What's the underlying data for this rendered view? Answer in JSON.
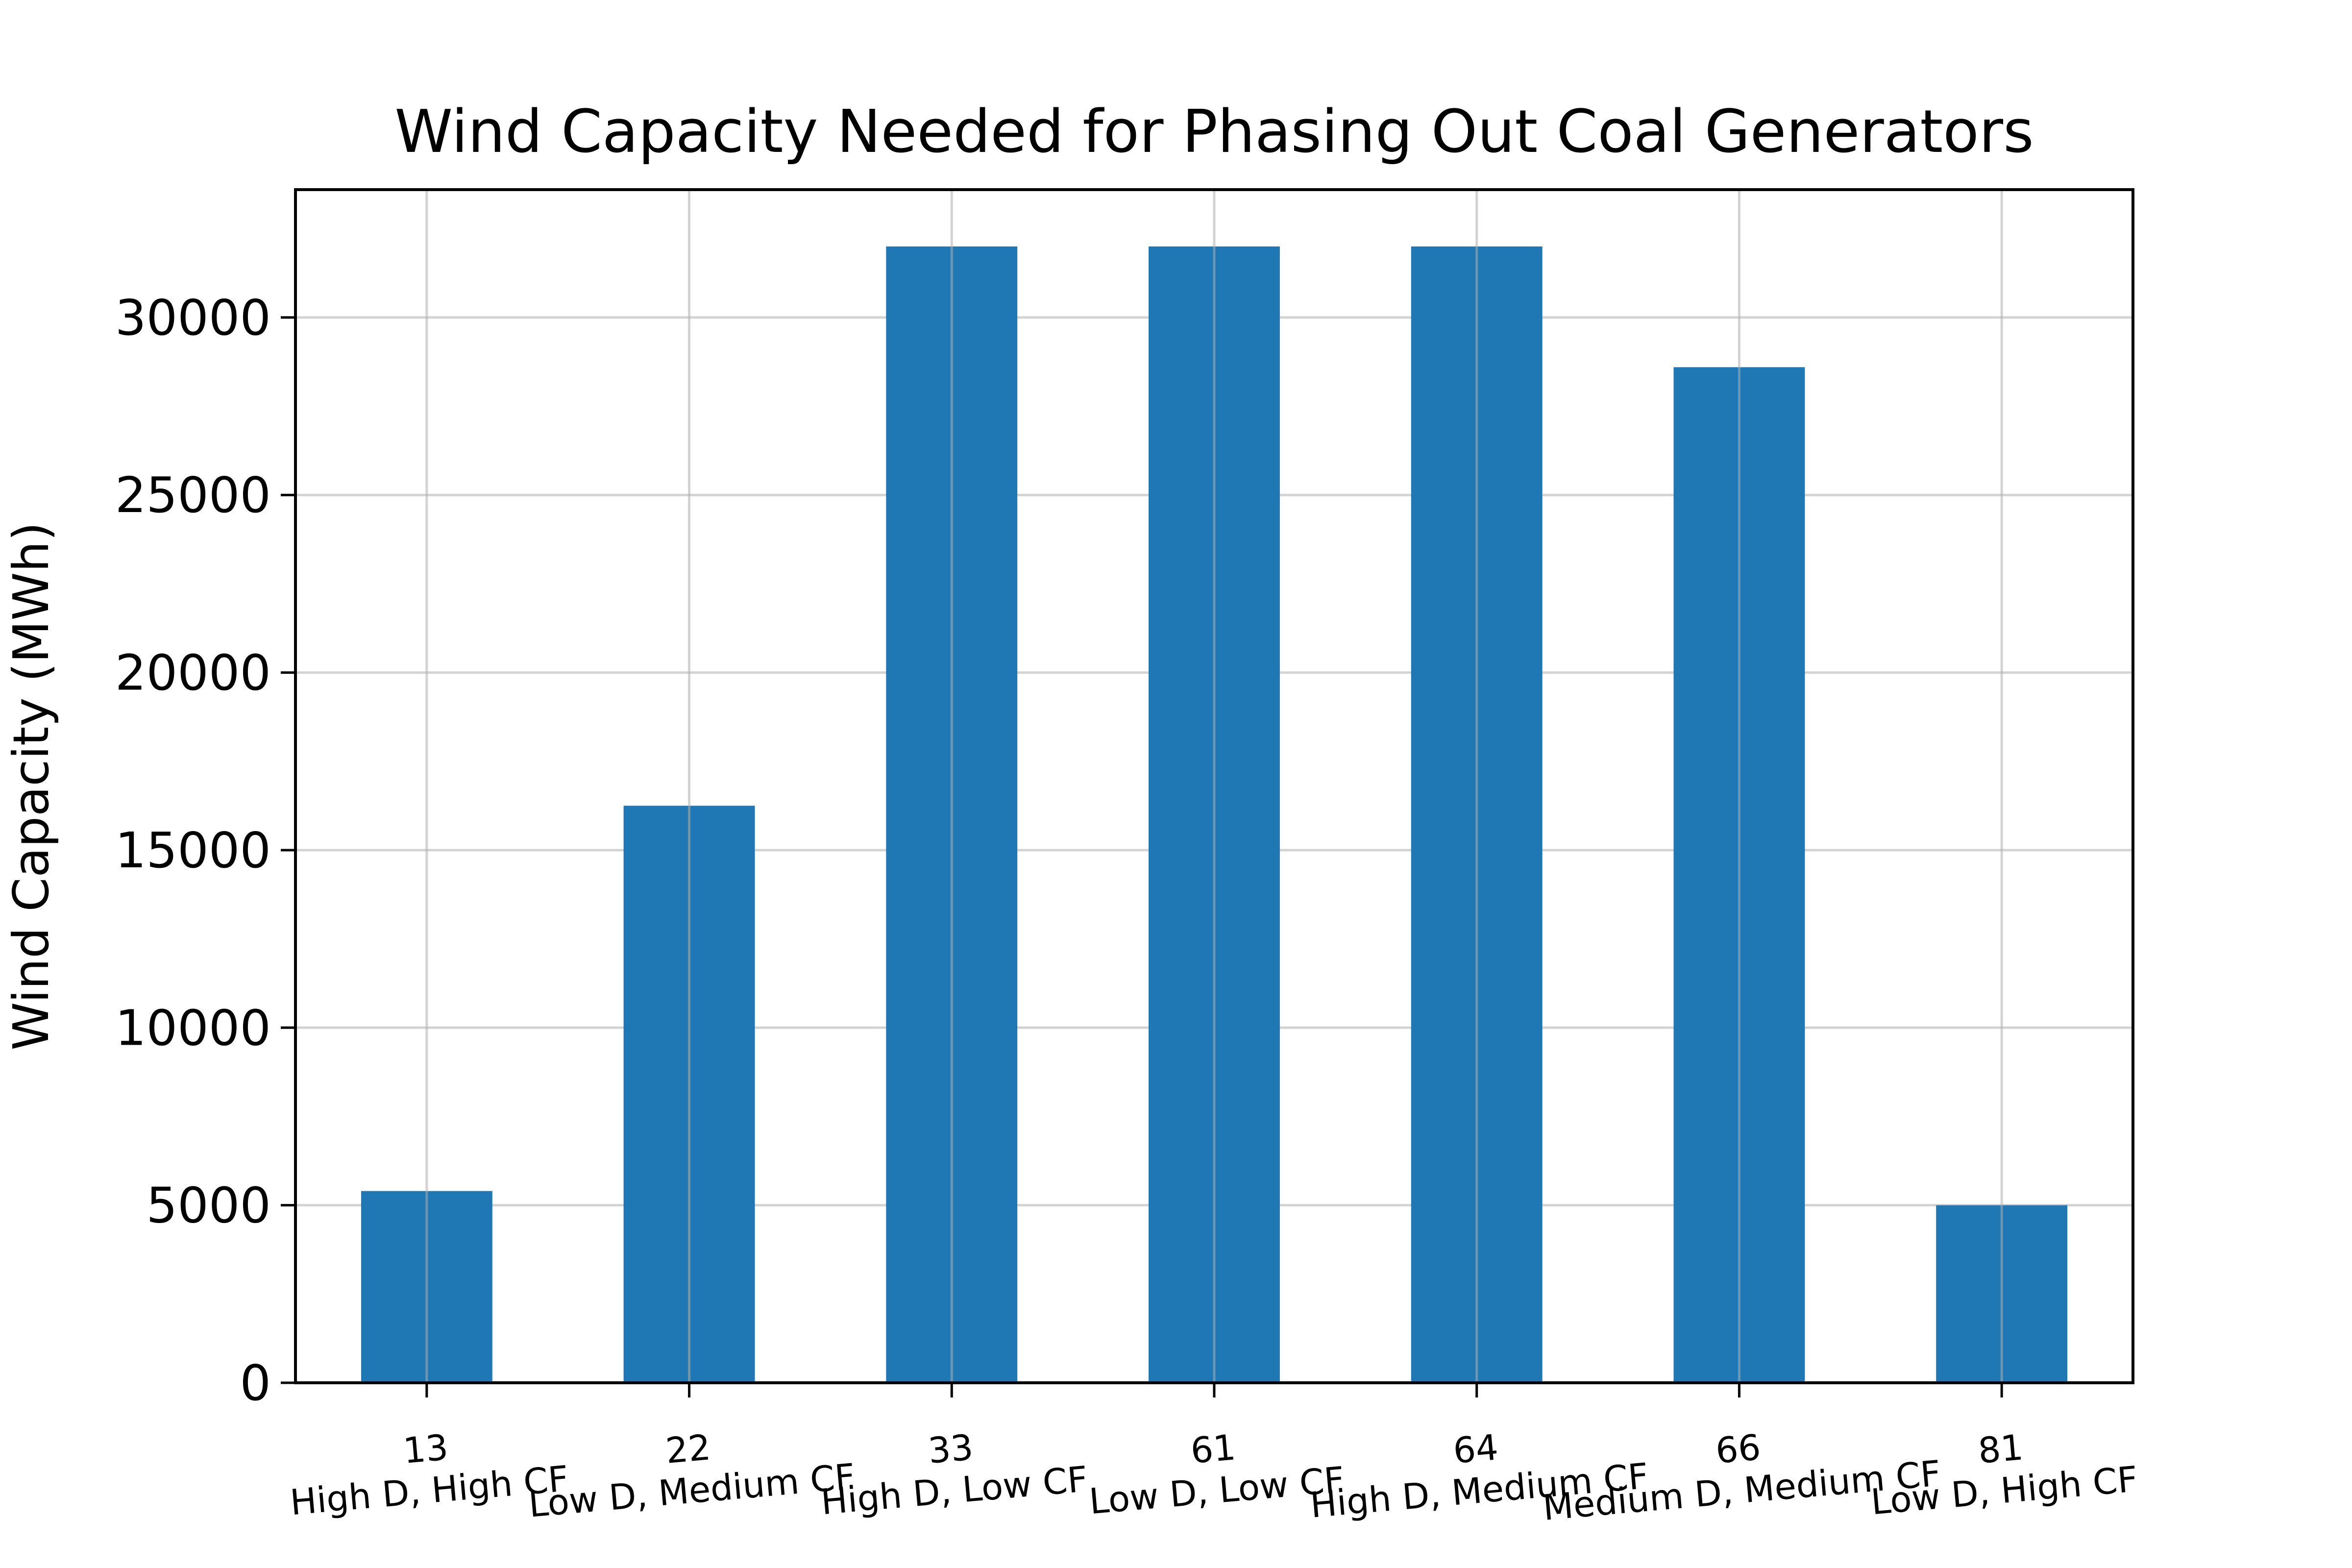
{
  "chart_data": {
    "type": "bar",
    "title": "Wind Capacity Needed for Phasing Out Coal Generators",
    "xlabel": "",
    "ylabel": "Wind Capacity (MWh)",
    "categories": [
      {
        "id": "13",
        "label": "High D, High CF"
      },
      {
        "id": "22",
        "label": "Low D, Medium CF"
      },
      {
        "id": "33",
        "label": "High D, Low CF"
      },
      {
        "id": "61",
        "label": "Low D, Low CF"
      },
      {
        "id": "64",
        "label": "High D, Medium CF"
      },
      {
        "id": "66",
        "label": "Medium D, Medium CF"
      },
      {
        "id": "81",
        "label": "Low D, High CF"
      }
    ],
    "values": [
      5400,
      16250,
      32000,
      32000,
      32000,
      28600,
      5000
    ],
    "ylim": [
      0,
      33600
    ],
    "yticks": [
      0,
      5000,
      10000,
      15000,
      20000,
      25000,
      30000
    ],
    "grid": true,
    "bar_color": "#1f77b4"
  }
}
